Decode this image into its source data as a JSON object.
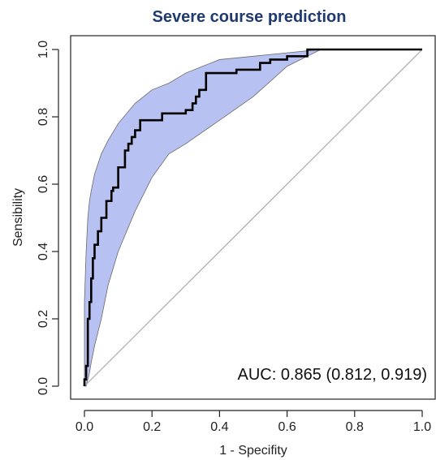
{
  "colors": {
    "title": "#1f3a6e",
    "band_fill": "#b8c2f2",
    "band_stroke": "#6a6a6a",
    "curve": "#000000",
    "diagonal": "#aaaaaa",
    "axis": "#222222"
  },
  "chart_data": {
    "type": "line",
    "title": "Severe course prediction",
    "xlabel": "1 - Specifity",
    "ylabel": "Sensibility",
    "xlim": [
      0,
      1
    ],
    "ylim": [
      0,
      1
    ],
    "x_ticks": [
      {
        "value": 0.0,
        "label": "0.0"
      },
      {
        "value": 0.2,
        "label": "0.2"
      },
      {
        "value": 0.4,
        "label": "0.4"
      },
      {
        "value": 0.6,
        "label": "0.6"
      },
      {
        "value": 0.8,
        "label": "0.8"
      },
      {
        "value": 1.0,
        "label": "1.0"
      }
    ],
    "y_ticks": [
      {
        "value": 0.0,
        "label": "0.0"
      },
      {
        "value": 0.2,
        "label": "0.2"
      },
      {
        "value": 0.4,
        "label": "0.4"
      },
      {
        "value": 0.6,
        "label": "0.6"
      },
      {
        "value": 0.8,
        "label": "0.8"
      },
      {
        "value": 1.0,
        "label": "1.0"
      }
    ],
    "grid": false,
    "annotation": "AUC: 0.865 (0.812, 0.919)",
    "roc_curve": {
      "x": [
        0.0,
        0.0,
        0.005,
        0.005,
        0.01,
        0.01,
        0.015,
        0.015,
        0.02,
        0.02,
        0.025,
        0.025,
        0.03,
        0.03,
        0.04,
        0.04,
        0.05,
        0.05,
        0.065,
        0.065,
        0.08,
        0.08,
        0.085,
        0.085,
        0.1,
        0.1,
        0.12,
        0.12,
        0.13,
        0.13,
        0.14,
        0.14,
        0.15,
        0.15,
        0.165,
        0.165,
        0.23,
        0.23,
        0.3,
        0.3,
        0.32,
        0.32,
        0.33,
        0.33,
        0.34,
        0.34,
        0.36,
        0.36,
        0.45,
        0.45,
        0.52,
        0.52,
        0.55,
        0.55,
        0.6,
        0.6,
        0.66,
        0.66,
        1.0
      ],
      "y": [
        0.0,
        0.02,
        0.02,
        0.06,
        0.06,
        0.2,
        0.2,
        0.25,
        0.25,
        0.32,
        0.32,
        0.38,
        0.38,
        0.42,
        0.42,
        0.46,
        0.46,
        0.5,
        0.5,
        0.55,
        0.55,
        0.58,
        0.58,
        0.59,
        0.59,
        0.65,
        0.65,
        0.7,
        0.7,
        0.72,
        0.72,
        0.74,
        0.74,
        0.76,
        0.76,
        0.79,
        0.79,
        0.81,
        0.81,
        0.82,
        0.82,
        0.84,
        0.84,
        0.86,
        0.86,
        0.88,
        0.88,
        0.93,
        0.93,
        0.94,
        0.94,
        0.96,
        0.96,
        0.97,
        0.97,
        0.98,
        0.98,
        1.0,
        1.0
      ]
    },
    "ci_band": {
      "x": [
        0.0,
        0.005,
        0.01,
        0.015,
        0.02,
        0.03,
        0.05,
        0.07,
        0.1,
        0.15,
        0.2,
        0.25,
        0.3,
        0.4,
        0.5,
        0.6,
        0.7,
        0.8,
        0.9,
        1.0
      ],
      "upper": [
        0.25,
        0.4,
        0.5,
        0.55,
        0.58,
        0.63,
        0.69,
        0.73,
        0.78,
        0.84,
        0.88,
        0.9,
        0.93,
        0.97,
        0.98,
        0.99,
        1.0,
        1.0,
        1.0,
        1.0
      ],
      "lower": [
        0.0,
        0.0,
        0.02,
        0.04,
        0.07,
        0.12,
        0.2,
        0.3,
        0.4,
        0.52,
        0.62,
        0.69,
        0.72,
        0.79,
        0.86,
        0.95,
        1.0,
        1.0,
        1.0,
        1.0
      ]
    },
    "diagonal": {
      "x": [
        0.0,
        1.0
      ],
      "y": [
        0.0,
        1.0
      ]
    }
  }
}
